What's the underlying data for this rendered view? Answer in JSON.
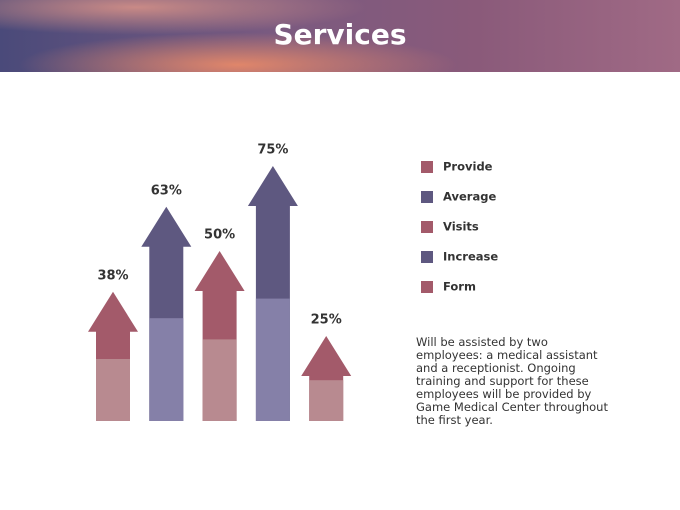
{
  "chart_data": {
    "type": "arrow-bar",
    "title": "Services",
    "categories": [
      "Provide",
      "Average",
      "Visits",
      "Increase",
      "Form"
    ],
    "values": [
      38,
      63,
      50,
      75,
      25
    ],
    "value_labels": [
      "38%",
      "63%",
      "50%",
      "75%",
      "25%"
    ],
    "colors": [
      "#a35a6a",
      "#5e5880",
      "#a35a6a",
      "#5e5880",
      "#a35a6a"
    ],
    "light_colors": [
      "#b88a90",
      "#8580a8",
      "#b88a90",
      "#8580a8",
      "#b88a90"
    ]
  },
  "description": "Will be assisted by two employees: a medical assistant and a receptionist. Ongoing training and support for these employees will be provided by Game Medical Center throughout the first year."
}
